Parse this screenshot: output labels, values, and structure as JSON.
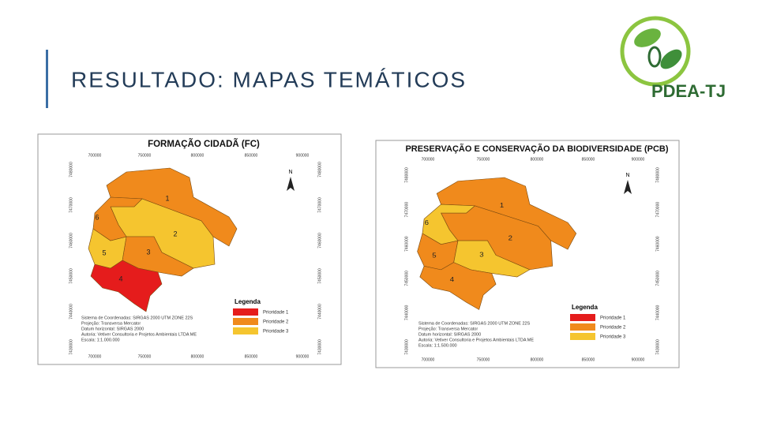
{
  "header": {
    "title": "RESULTADO: MAPAS TEMÁTICOS",
    "logo_text": "PDEA-TJ"
  },
  "maps": [
    {
      "title": "FORMAÇÃO CIDADÃ (FC)",
      "north": "N",
      "ticks_x": [
        "700000",
        "750000",
        "800000",
        "850000",
        "900000"
      ],
      "ticks_y": [
        "7480000",
        "7470000",
        "7460000",
        "7450000",
        "7440000",
        "7430000"
      ],
      "regions": [
        {
          "label": "1",
          "color": "#f08a1c"
        },
        {
          "label": "2",
          "color": "#f5c52f"
        },
        {
          "label": "3",
          "color": "#f08a1c"
        },
        {
          "label": "4",
          "color": "#e51c1c"
        },
        {
          "label": "5",
          "color": "#f5c52f"
        },
        {
          "label": "6",
          "color": "#f08a1c"
        }
      ],
      "legend": {
        "title": "Legenda",
        "items": [
          {
            "label": "Prioridade 1",
            "color": "#e51c1c"
          },
          {
            "label": "Prioridade 2",
            "color": "#f08a1c"
          },
          {
            "label": "Prioridade 3",
            "color": "#f5c52f"
          }
        ]
      },
      "info": [
        "Sistema de Coordenadas: SIRGAS 2000 UTM ZONE 22S",
        "Projeção: Transversa Mercator",
        "Datum horizontal: SIRGAS 2000",
        "Autoria: Vetiver Consultoria e Projetos Ambientais LTDA ME",
        "Escala: 1:1.000.000"
      ]
    },
    {
      "title": "PRESERVAÇÃO E CONSERVAÇÃO DA BIODIVERSIDADE (PCB)",
      "north": "N",
      "ticks_x": [
        "700000",
        "750000",
        "800000",
        "850000",
        "900000"
      ],
      "ticks_y": [
        "7480000",
        "7470000",
        "7460000",
        "7450000",
        "7440000",
        "7430000"
      ],
      "regions": [
        {
          "label": "1",
          "color": "#f08a1c"
        },
        {
          "label": "2",
          "color": "#f08a1c"
        },
        {
          "label": "3",
          "color": "#f5c52f"
        },
        {
          "label": "4",
          "color": "#f08a1c"
        },
        {
          "label": "5",
          "color": "#f08a1c"
        },
        {
          "label": "6",
          "color": "#f5c52f"
        }
      ],
      "legend": {
        "title": "Legenda",
        "items": [
          {
            "label": "Prioridade 1",
            "color": "#e51c1c"
          },
          {
            "label": "Prioridade 2",
            "color": "#f08a1c"
          },
          {
            "label": "Prioridade 3",
            "color": "#f5c52f"
          }
        ]
      },
      "info": [
        "Sistema de Coordenadas: SIRGAS 2000 UTM ZONE 22S",
        "Projeção: Transversa Mercator",
        "Datum horizontal: SIRGAS 2000",
        "Autoria: Vetiver Consultoria e Projetos Ambientais LTDA ME",
        "Escala: 1:1.500.000"
      ]
    }
  ]
}
